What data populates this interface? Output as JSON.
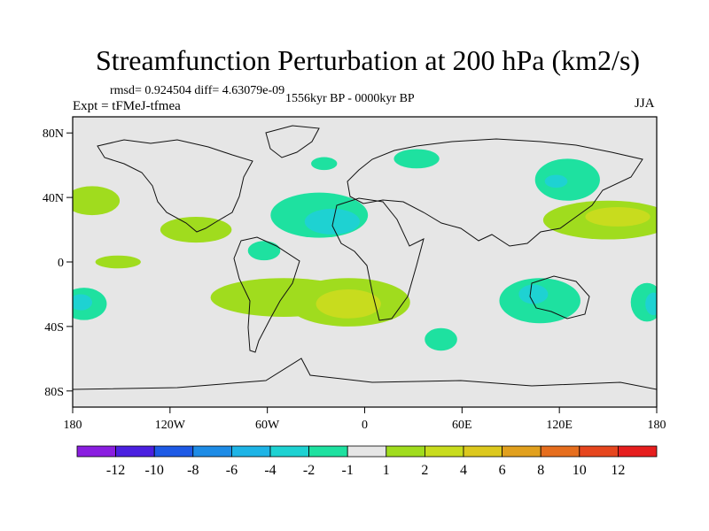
{
  "chart_data": {
    "type": "heatmap",
    "title": "Streamfunction Perturbation at 200 hPa (km2/s)",
    "stats_text": "rmsd= 0.924504 diff= 4.63079e-09",
    "center_text": "1556kyr BP - 0000kyr BP",
    "left_text": "Expt = tFMeJ-tfmea",
    "right_text": "JJA",
    "x_ticks": [
      {
        "value": -180,
        "label": "180"
      },
      {
        "value": -120,
        "label": "120W"
      },
      {
        "value": -60,
        "label": "60W"
      },
      {
        "value": 0,
        "label": "0"
      },
      {
        "value": 60,
        "label": "60E"
      },
      {
        "value": 120,
        "label": "120E"
      },
      {
        "value": 180,
        "label": "180"
      }
    ],
    "y_ticks": [
      {
        "value": 80,
        "label": "80N"
      },
      {
        "value": 40,
        "label": "40N"
      },
      {
        "value": 0,
        "label": "0"
      },
      {
        "value": -40,
        "label": "40S"
      },
      {
        "value": -80,
        "label": "80S"
      }
    ],
    "xlim": [
      -180,
      180
    ],
    "ylim": [
      -90,
      90
    ],
    "colorbar": {
      "colors": [
        "#8a1ee0",
        "#4b20e0",
        "#1e5ae6",
        "#1e8ce6",
        "#1eb4e6",
        "#1ed2d2",
        "#1ee1a0",
        "#e6e6e6",
        "#a0dc1e",
        "#c8dc1e",
        "#dcc81e",
        "#e1a01e",
        "#e66e1e",
        "#e6461e",
        "#e61e1e"
      ],
      "labels": [
        "-12",
        "-10",
        "-8",
        "-6",
        "-4",
        "-2",
        "-1",
        "1",
        "2",
        "4",
        "6",
        "8",
        "10",
        "12"
      ]
    },
    "anomalies": [
      {
        "name": "north-atlantic-low",
        "level": "-1",
        "lon": -28,
        "lat": 29,
        "rlon": 30,
        "rlat": 14
      },
      {
        "name": "north-atlantic-low-core",
        "level": "-2",
        "lon": -20,
        "lat": 25,
        "rlon": 17,
        "rlat": 8
      },
      {
        "name": "caribbean-low",
        "level": "-1",
        "lon": -62,
        "lat": 7,
        "rlon": 10,
        "rlat": 6
      },
      {
        "name": "nordic-low",
        "level": "-1",
        "lon": -25,
        "lat": 61,
        "rlon": 8,
        "rlat": 4
      },
      {
        "name": "barents-low",
        "level": "-1",
        "lon": 32,
        "lat": 64,
        "rlon": 14,
        "rlat": 6
      },
      {
        "name": "siberian-low",
        "level": "-1",
        "lon": 125,
        "lat": 51,
        "rlon": 20,
        "rlat": 13
      },
      {
        "name": "siberian-low-core",
        "level": "-2",
        "lon": 118,
        "lat": 50,
        "rlon": 7,
        "rlat": 4
      },
      {
        "name": "australia-low",
        "level": "-1",
        "lon": 108,
        "lat": -24,
        "rlon": 25,
        "rlat": 14
      },
      {
        "name": "australia-low-core",
        "level": "-2",
        "lon": 104,
        "lat": -20,
        "rlon": 9,
        "rlat": 6
      },
      {
        "name": "south-pacific-low",
        "level": "-1",
        "lon": -173,
        "lat": -26,
        "rlon": 14,
        "rlat": 10
      },
      {
        "name": "south-pacific-low-core",
        "level": "-2",
        "lon": -175,
        "lat": -25,
        "rlon": 7,
        "rlat": 5
      },
      {
        "name": "tasman-low",
        "level": "-1",
        "lon": 174,
        "lat": -25,
        "rlon": 10,
        "rlat": 12
      },
      {
        "name": "tasman-low-core",
        "level": "-2",
        "lon": 178,
        "lat": -26,
        "rlon": 5,
        "rlat": 7
      },
      {
        "name": "indian-ocean-low",
        "level": "-1",
        "lon": 47,
        "lat": -48,
        "rlon": 10,
        "rlat": 7
      },
      {
        "name": "north-pacific-high-west",
        "level": "1",
        "lon": -168,
        "lat": 38,
        "rlon": 17,
        "rlat": 9
      },
      {
        "name": "east-pacific-high",
        "level": "1",
        "lon": -104,
        "lat": 20,
        "rlon": 22,
        "rlat": 8
      },
      {
        "name": "tropical-pacific-high",
        "level": "1",
        "lon": -152,
        "lat": 0,
        "rlon": 14,
        "rlat": 4
      },
      {
        "name": "south-america-high",
        "level": "1",
        "lon": -50,
        "lat": -22,
        "rlon": 45,
        "rlat": 12
      },
      {
        "name": "south-atlantic-high",
        "level": "1",
        "lon": -10,
        "lat": -25,
        "rlon": 38,
        "rlat": 15
      },
      {
        "name": "south-atlantic-high-core",
        "level": "2",
        "lon": -10,
        "lat": -26,
        "rlon": 20,
        "rlat": 9
      },
      {
        "name": "japan-high",
        "level": "1",
        "lon": 150,
        "lat": 26,
        "rlon": 40,
        "rlat": 12
      },
      {
        "name": "japan-high-core",
        "level": "2",
        "lon": 156,
        "lat": 28,
        "rlon": 20,
        "rlat": 6
      }
    ]
  }
}
